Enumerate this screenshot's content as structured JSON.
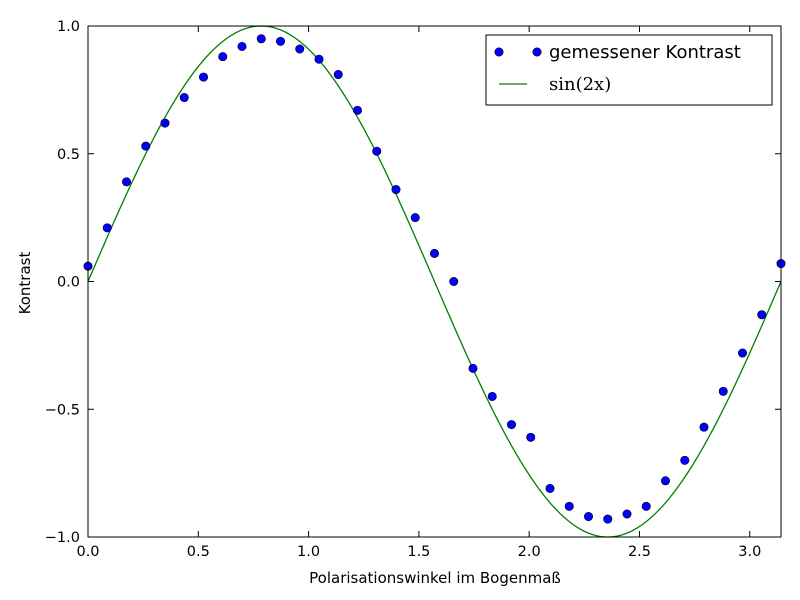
{
  "chart_data": {
    "type": "scatter",
    "title": "",
    "xlabel": "Polarisationswinkel im Bogenmaß",
    "ylabel": "Kontrast",
    "xlim": [
      0.0,
      3.14159
    ],
    "ylim": [
      -1.0,
      1.0
    ],
    "x_ticks": [
      "0.0",
      "0.5",
      "1.0",
      "1.5",
      "2.0",
      "2.5",
      "3.0"
    ],
    "x_tick_values": [
      0.0,
      0.5,
      1.0,
      1.5,
      2.0,
      2.5,
      3.0
    ],
    "y_ticks": [
      "1.0",
      "0.5",
      "0.0",
      "−0.5",
      "−1.0"
    ],
    "y_tick_values": [
      1.0,
      0.5,
      0.0,
      -0.5,
      -1.0
    ],
    "grid": false,
    "legend_position": "top-right",
    "series": [
      {
        "name": "gemessener Kontrast",
        "kind": "markers",
        "color": "#0000ff",
        "x": [
          0.0,
          0.0873,
          0.1745,
          0.2618,
          0.3491,
          0.4363,
          0.5236,
          0.6109,
          0.6981,
          0.7854,
          0.8727,
          0.9599,
          1.0472,
          1.1345,
          1.2217,
          1.309,
          1.3963,
          1.4835,
          1.5708,
          1.6581,
          1.7453,
          1.8326,
          1.9199,
          2.0071,
          2.0944,
          2.1817,
          2.2689,
          2.3562,
          2.4435,
          2.5307,
          2.618,
          2.7053,
          2.7925,
          2.8798,
          2.9671,
          3.0543,
          3.1416
        ],
        "y": [
          0.06,
          0.21,
          0.39,
          0.53,
          0.62,
          0.72,
          0.8,
          0.88,
          0.92,
          0.95,
          0.94,
          0.91,
          0.87,
          0.81,
          0.67,
          0.51,
          0.36,
          0.25,
          0.11,
          0.0,
          -0.34,
          -0.45,
          -0.56,
          -0.61,
          -0.81,
          -0.88,
          -0.92,
          -0.93,
          -0.91,
          -0.88,
          -0.78,
          -0.7,
          -0.57,
          -0.43,
          -0.28,
          -0.13,
          0.07
        ]
      },
      {
        "name": "sin(2x)",
        "kind": "line",
        "color": "#008000",
        "function": "sin(2x)"
      }
    ]
  }
}
